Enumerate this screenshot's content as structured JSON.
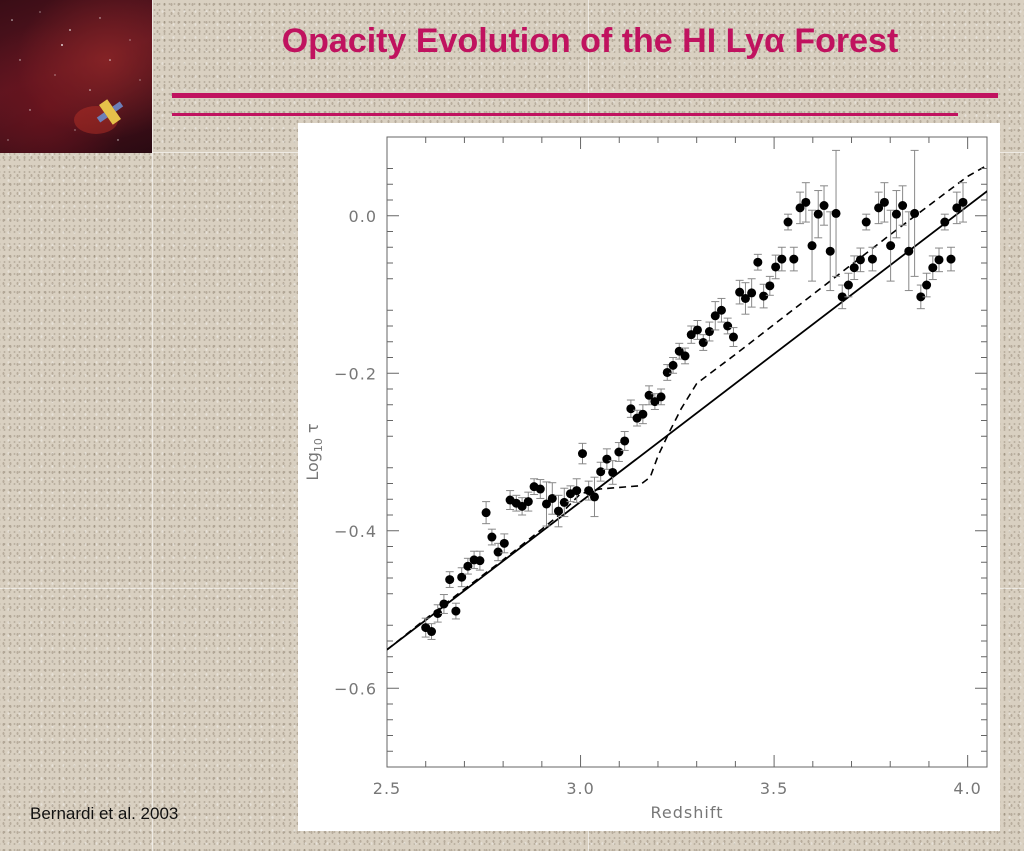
{
  "slide": {
    "title": "Opacity Evolution of the HI Lyα Forest",
    "citation": "Bernardi et al. 2003",
    "accent_color": "#c0125f",
    "logo": "galaxy-telescope-logo"
  },
  "chart_data": {
    "type": "scatter",
    "title": "",
    "xlabel": "Redshift",
    "ylabel": "Log10 τ",
    "xlim": [
      2.5,
      4.05
    ],
    "ylim": [
      -0.7,
      0.1
    ],
    "x_ticks": [
      "2.5",
      "3.0",
      "3.5",
      "4.0"
    ],
    "y_ticks": [
      "0.0",
      "−0.2",
      "−0.4",
      "−0.6"
    ],
    "x_tick_values": [
      2.5,
      3.0,
      3.5,
      4.0
    ],
    "y_tick_values": [
      0.0,
      -0.2,
      -0.4,
      -0.6
    ],
    "grid": false,
    "series": [
      {
        "style": "points-with-error-bars",
        "x": [
          2.6,
          2.615,
          2.631,
          2.647,
          2.662,
          2.678,
          2.693,
          2.709,
          2.725,
          2.74,
          2.756,
          2.771,
          2.787,
          2.803,
          2.818,
          2.834,
          2.849,
          2.865,
          2.88,
          2.896,
          2.912,
          2.927,
          2.943,
          2.958,
          2.974,
          2.99,
          3.005,
          3.021,
          3.036,
          3.052,
          3.068,
          3.083,
          3.099,
          3.114,
          3.13,
          3.146,
          3.161,
          3.177,
          3.192,
          3.208,
          3.224,
          3.239,
          3.255,
          3.27,
          3.286,
          3.302,
          3.317,
          3.333,
          3.348,
          3.364,
          3.38,
          3.395,
          3.411,
          3.426,
          3.442,
          3.458,
          3.473,
          3.489,
          3.504,
          3.52,
          3.536,
          3.551,
          3.567,
          3.582,
          3.598,
          3.614,
          3.629,
          3.645,
          3.66,
          3.676,
          3.692,
          3.707,
          3.723,
          3.738,
          3.754,
          3.77,
          3.785,
          3.801,
          3.816,
          3.832,
          3.848,
          3.863,
          3.879,
          3.894,
          3.91,
          3.926,
          3.941,
          3.957,
          3.972,
          3.988
        ],
        "y": [
          -0.523,
          -0.528,
          -0.505,
          -0.493,
          -0.462,
          -0.502,
          -0.459,
          -0.445,
          -0.437,
          -0.438,
          -0.377,
          -0.408,
          -0.427,
          -0.416,
          -0.361,
          -0.365,
          -0.369,
          -0.363,
          -0.344,
          -0.347,
          -0.366,
          -0.359,
          -0.375,
          -0.364,
          -0.353,
          -0.349,
          -0.302,
          -0.349,
          -0.357,
          -0.325,
          -0.309,
          -0.326,
          -0.3,
          -0.286,
          -0.245,
          -0.257,
          -0.252,
          -0.228,
          -0.236,
          -0.23,
          -0.199,
          -0.19,
          -0.172,
          -0.178,
          -0.151,
          -0.145,
          -0.161,
          -0.147,
          -0.127,
          -0.12,
          -0.14,
          -0.154,
          -0.097,
          -0.105,
          -0.098,
          -0.059,
          -0.102,
          -0.089,
          -0.065,
          -0.055,
          -0.008,
          -0.055,
          0.01,
          0.017,
          -0.038,
          0.002,
          0.013,
          -0.045,
          0.003,
          -0.103,
          -0.088,
          -0.066,
          -0.056,
          -0.008,
          -0.055,
          0.01,
          0.017,
          -0.038,
          0.002,
          0.013,
          -0.045,
          0.003,
          -0.103,
          -0.088,
          -0.066,
          -0.056,
          -0.008,
          -0.055,
          0.01,
          0.017
        ],
        "error": [
          0.012,
          0.01,
          0.011,
          0.012,
          0.01,
          0.01,
          0.012,
          0.01,
          0.011,
          0.012,
          0.014,
          0.01,
          0.011,
          0.012,
          0.012,
          0.01,
          0.011,
          0.012,
          0.01,
          0.012,
          0.028,
          0.02,
          0.02,
          0.018,
          0.01,
          0.015,
          0.013,
          0.012,
          0.025,
          0.012,
          0.013,
          0.015,
          0.012,
          0.012,
          0.011,
          0.01,
          0.012,
          0.012,
          0.01,
          0.01,
          0.01,
          0.01,
          0.01,
          0.01,
          0.011,
          0.012,
          0.01,
          0.012,
          0.018,
          0.015,
          0.01,
          0.012,
          0.015,
          0.02,
          0.018,
          0.01,
          0.015,
          0.012,
          0.015,
          0.015,
          0.01,
          0.015,
          0.02,
          0.025,
          0.045,
          0.03,
          0.025,
          0.05,
          0.08,
          0.015,
          0.015,
          0.015,
          0.015,
          0.01,
          0.015,
          0.02,
          0.025,
          0.045,
          0.03,
          0.025,
          0.05,
          0.08,
          0.015,
          0.015,
          0.015,
          0.015,
          0.01,
          0.015,
          0.02,
          0.025
        ]
      },
      {
        "style": "solid-line",
        "x": [
          2.5,
          4.1
        ],
        "y": [
          -0.551,
          0.05
        ]
      },
      {
        "style": "dashed-line",
        "x": [
          2.5,
          2.6,
          2.7,
          2.8,
          2.9,
          2.95,
          3.0,
          3.05,
          3.1,
          3.15,
          3.18,
          3.2,
          3.23,
          3.26,
          3.3,
          3.4,
          3.5,
          3.6,
          3.7,
          3.8,
          3.9,
          4.0,
          4.1
        ],
        "y": [
          -0.551,
          -0.512,
          -0.474,
          -0.437,
          -0.398,
          -0.378,
          -0.353,
          -0.347,
          -0.345,
          -0.343,
          -0.332,
          -0.305,
          -0.274,
          -0.245,
          -0.213,
          -0.176,
          -0.138,
          -0.1,
          -0.062,
          -0.024,
          0.013,
          0.05,
          0.078
        ]
      }
    ]
  }
}
